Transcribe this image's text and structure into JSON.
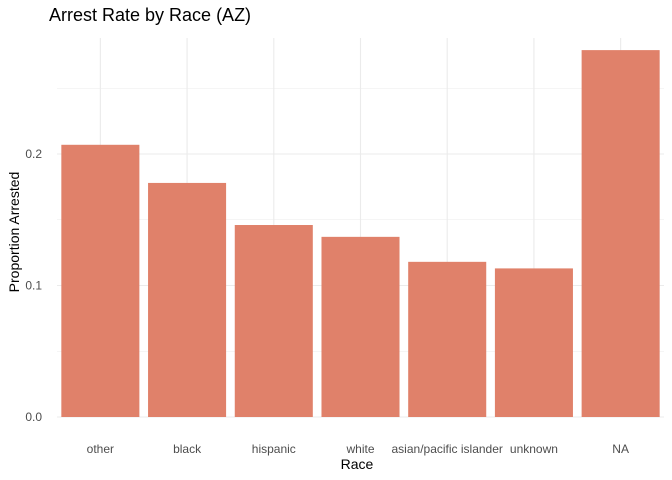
{
  "chart_data": {
    "type": "bar",
    "title": "Arrest Rate by Race (AZ)",
    "xlabel": "Race",
    "ylabel": "Proportion Arrested",
    "categories": [
      "other",
      "black",
      "hispanic",
      "white",
      "asian/pacific islander",
      "unknown",
      "NA"
    ],
    "values": [
      0.207,
      0.178,
      0.146,
      0.137,
      0.118,
      0.113,
      0.279
    ],
    "ylim": [
      0,
      0.29
    ],
    "yticks": [
      0.0,
      0.1,
      0.2
    ],
    "ytick_labels": [
      "0.0",
      "0.1",
      "0.2"
    ],
    "bar_color": "#E0816A",
    "grid": true,
    "grid_color": "#EBEBEB"
  }
}
